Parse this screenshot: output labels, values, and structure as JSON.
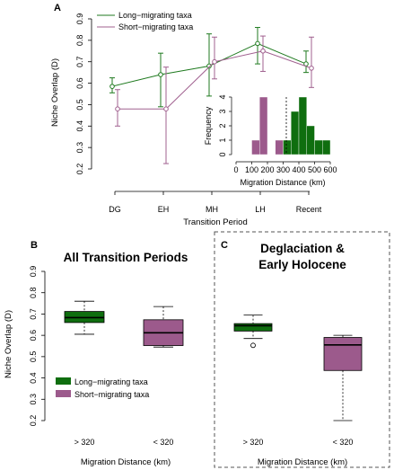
{
  "colors": {
    "long": "#1f7a1f",
    "short": "#a0608f",
    "long_fill": "#0f6e0f",
    "short_fill": "#9c5a8c",
    "long_line": "#2e8b2e",
    "short_line": "#b07aa3"
  },
  "chart_data": [
    {
      "type": "line",
      "panel_label": "A",
      "xlabel": "Transition Period",
      "ylabel": "Niche Overlap (D)",
      "categories": [
        "DG",
        "EH",
        "MH",
        "LH",
        "Recent"
      ],
      "ylim": [
        0.2,
        0.9
      ],
      "yticks": [
        "0.2",
        "0.3",
        "0.4",
        "0.5",
        "0.6",
        "0.7",
        "0.8",
        "0.9"
      ],
      "legend_position": "top-left",
      "series": [
        {
          "name": "Long−migrating taxa",
          "values": [
            0.585,
            0.64,
            0.68,
            0.785,
            0.69
          ],
          "lower": [
            0.555,
            0.49,
            0.54,
            0.69,
            0.65
          ],
          "upper": [
            0.625,
            0.74,
            0.83,
            0.86,
            0.75
          ]
        },
        {
          "name": "Short−migrating taxa",
          "values": [
            0.48,
            0.48,
            0.7,
            0.75,
            0.67
          ],
          "lower": [
            0.4,
            0.225,
            0.62,
            0.655,
            0.58
          ],
          "upper": [
            0.57,
            0.675,
            0.815,
            0.82,
            0.815
          ]
        }
      ]
    },
    {
      "type": "bar",
      "subtype": "histogram",
      "xlabel": "Migration Distance (km)",
      "ylabel": "Frequency",
      "xlim": [
        0,
        600
      ],
      "xticks": [
        "0",
        "100",
        "200",
        "300",
        "400",
        "500",
        "600"
      ],
      "ylim": [
        0,
        4
      ],
      "yticks": [
        "0",
        "1",
        "2",
        "3",
        "4"
      ],
      "cutoff": 320,
      "bin_width": 50,
      "bins_short": [
        {
          "x": 100,
          "count": 1
        },
        {
          "x": 150,
          "count": 4
        },
        {
          "x": 250,
          "count": 1
        }
      ],
      "bins_long": [
        {
          "x": 300,
          "count": 1
        },
        {
          "x": 350,
          "count": 3
        },
        {
          "x": 400,
          "count": 4
        },
        {
          "x": 450,
          "count": 2
        },
        {
          "x": 500,
          "count": 1
        },
        {
          "x": 550,
          "count": 1
        }
      ]
    },
    {
      "type": "box",
      "panel_label": "B",
      "title": "All Transition Periods",
      "xlabel": "Migration Distance (km)",
      "ylabel": "Niche Overlap (D)",
      "categories": [
        "> 320",
        "< 320"
      ],
      "ylim": [
        0.2,
        0.9
      ],
      "yticks": [
        "0.2",
        "0.3",
        "0.4",
        "0.5",
        "0.6",
        "0.7",
        "0.8",
        "0.9"
      ],
      "boxes": [
        {
          "min": 0.605,
          "q1": 0.66,
          "median": 0.683,
          "q3": 0.712,
          "max": 0.76
        },
        {
          "min": 0.545,
          "q1": 0.552,
          "median": 0.612,
          "q3": 0.673,
          "max": 0.735
        }
      ],
      "legend": [
        "Long−migrating taxa",
        "Short−migrating taxa"
      ]
    },
    {
      "type": "box",
      "panel_label": "C",
      "title_lines": [
        "Deglaciation &",
        "Early Holocene"
      ],
      "xlabel": "Migration Distance (km)",
      "categories": [
        "> 320",
        "< 320"
      ],
      "ylim": [
        0.2,
        0.9
      ],
      "boxes": [
        {
          "min": 0.585,
          "q1": 0.62,
          "median": 0.645,
          "q3": 0.655,
          "max": 0.695,
          "outliers": [
            0.553
          ]
        },
        {
          "min": 0.2,
          "q1": 0.435,
          "median": 0.555,
          "q3": 0.59,
          "max": 0.6
        }
      ]
    }
  ]
}
